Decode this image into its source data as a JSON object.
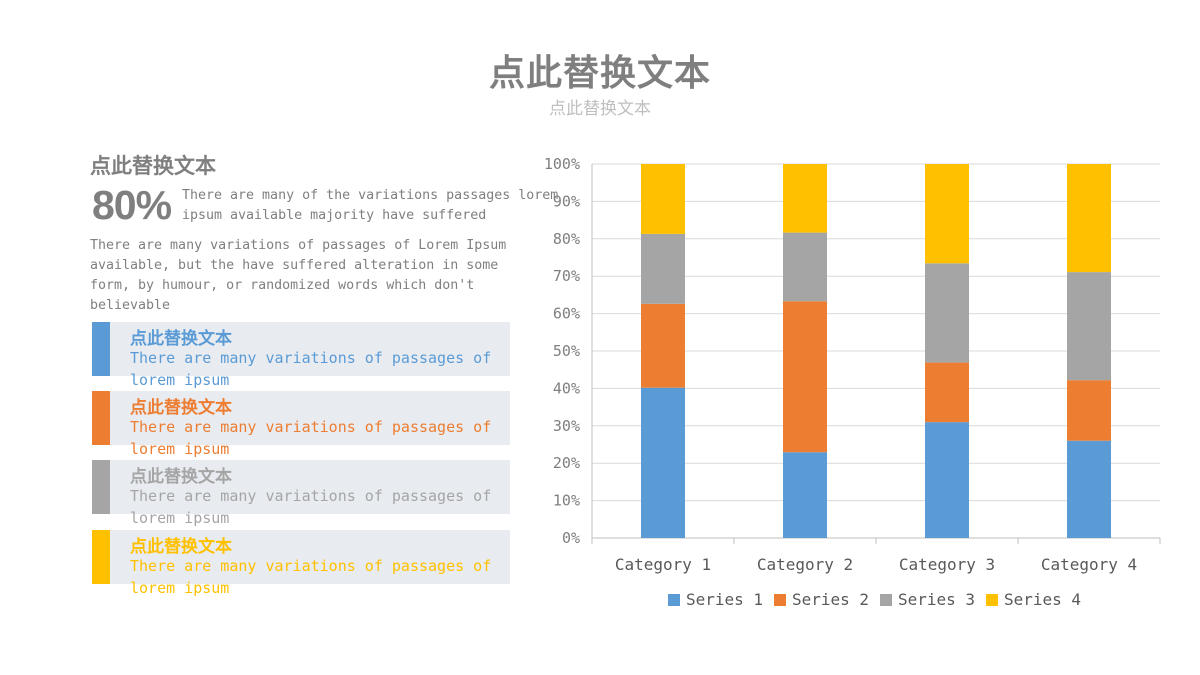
{
  "header": {
    "title": "点此替换文本",
    "subtitle": "点此替换文本"
  },
  "left": {
    "heading": "点此替换文本",
    "stat_value": "80%",
    "stat_desc": "There are many of the variations passages lorem ipsum available majority have suffered",
    "paragraph": "There are many variations of passages  of Lorem Ipsum available, but the have suffered alteration in some form, by humour, or randomized words which  don't believable",
    "items": [
      {
        "title": "点此替换文本",
        "text": "There are many variations of passages of lorem ipsum",
        "color": "#5b9bd5"
      },
      {
        "title": "点此替换文本",
        "text": "There are many variations of passages of lorem ipsum",
        "color": "#ed7d31"
      },
      {
        "title": "点此替换文本",
        "text": "There are many variations of passages of lorem ipsum",
        "color": "#a5a5a5"
      },
      {
        "title": "点此替换文本",
        "text": "There are many variations of passages of lorem ipsum",
        "color": "#ffc000"
      }
    ]
  },
  "chart_data": {
    "type": "bar",
    "stacking": "percent",
    "categories": [
      "Category 1",
      "Category 2",
      "Category 3",
      "Category 4"
    ],
    "series": [
      {
        "name": "Series 1",
        "color": "#5b9bd5",
        "values": [
          4.3,
          2.5,
          3.5,
          4.5
        ]
      },
      {
        "name": "Series 2",
        "color": "#ed7d31",
        "values": [
          2.4,
          4.4,
          1.8,
          2.8
        ]
      },
      {
        "name": "Series 3",
        "color": "#a5a5a5",
        "values": [
          2.0,
          2.0,
          3.0,
          5.0
        ]
      },
      {
        "name": "Series 4",
        "color": "#ffc000",
        "values": [
          2.0,
          2.0,
          3.0,
          5.0
        ]
      }
    ],
    "y_ticks": [
      "0%",
      "10%",
      "20%",
      "30%",
      "40%",
      "50%",
      "60%",
      "70%",
      "80%",
      "90%",
      "100%"
    ],
    "ylim": [
      0,
      100
    ],
    "grid": true,
    "legend_position": "bottom"
  }
}
